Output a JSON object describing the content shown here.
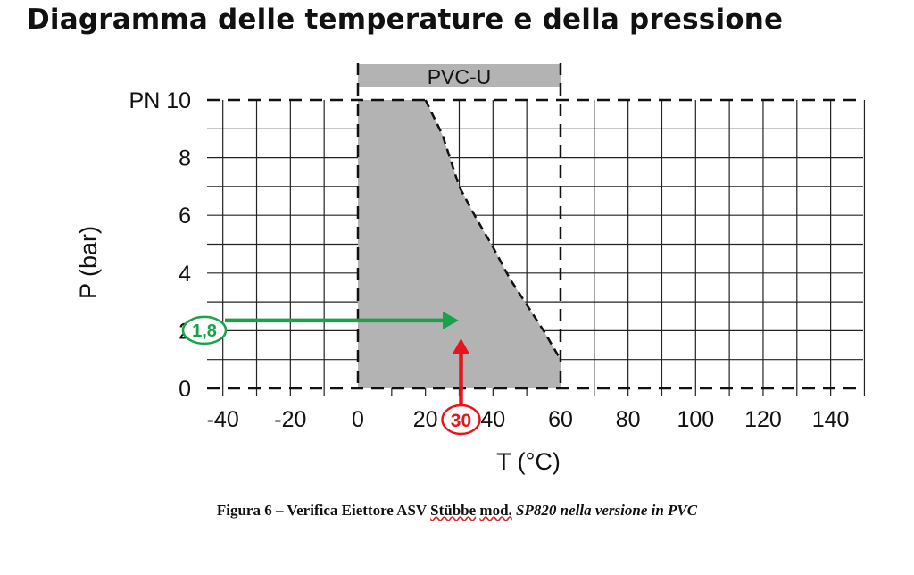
{
  "title": "Diagramma delle temperature e della pressione",
  "caption": {
    "prefix": "Figura 6 – Verifica Eiettore ASV ",
    "underlined_1": "Stübbe",
    "space": " ",
    "underlined_2": "mod.",
    "italic": " SP820 nella versione in PVC"
  },
  "colors": {
    "area": "#b3b3b3",
    "green": "#1aa14a",
    "red": "#e8141b",
    "grid": "#222222"
  },
  "chart_data": {
    "type": "area",
    "series": [
      {
        "name": "PVC-U",
        "x": [
          0,
          20,
          25,
          30,
          35,
          40,
          45,
          50,
          55,
          60
        ],
        "y": [
          10,
          10,
          8.8,
          7.0,
          5.9,
          4.9,
          3.8,
          2.9,
          2.0,
          1.0
        ]
      }
    ],
    "band": {
      "label": "PVC-U",
      "from": 0,
      "to": 60
    },
    "xlabel": "T (°C)",
    "ylabel": "P (bar)",
    "xlim": [
      -40,
      150
    ],
    "ylim": [
      0,
      10
    ],
    "xticks": [
      -40,
      -20,
      0,
      20,
      40,
      60,
      80,
      100,
      120,
      140
    ],
    "yticks": [
      0,
      2,
      4,
      6,
      8,
      10
    ],
    "ytick_labels": [
      "0",
      "2",
      "4",
      "6",
      "8",
      "PN 10"
    ],
    "grid": true,
    "annotations": [
      {
        "label": "1,8",
        "value": 1.8,
        "axis": "y",
        "color": "green"
      },
      {
        "label": "30",
        "value": 30,
        "axis": "x",
        "color": "red"
      }
    ]
  }
}
